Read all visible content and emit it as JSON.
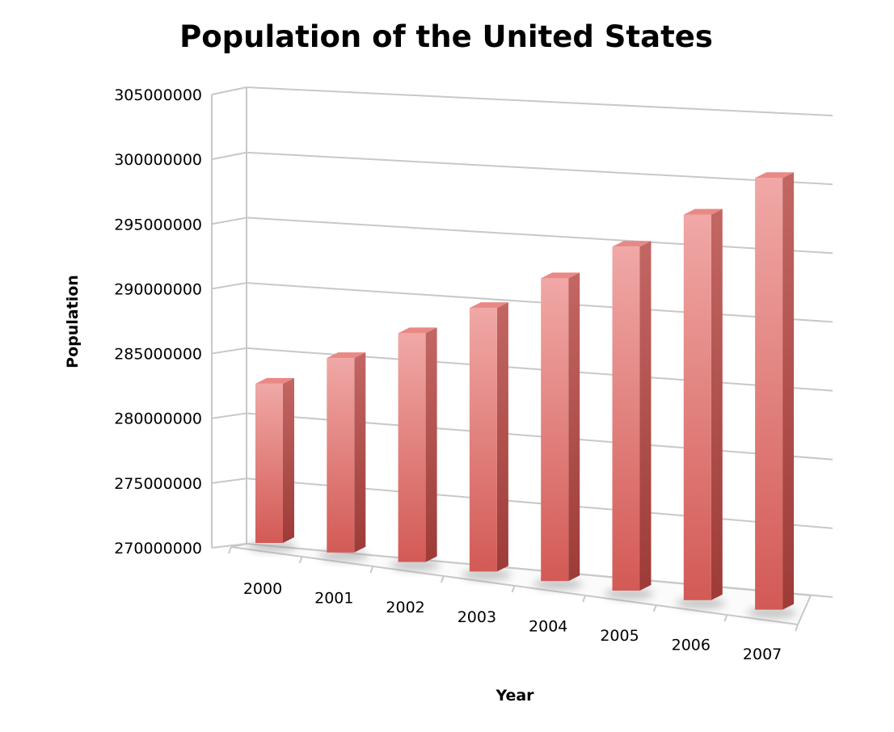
{
  "chart_data": {
    "type": "bar",
    "title": "Population of the United States",
    "xlabel": "Year",
    "ylabel": "Population",
    "categories": [
      "2000",
      "2001",
      "2002",
      "2003",
      "2004",
      "2005",
      "2006",
      "2007"
    ],
    "values": [
      282200000,
      284800000,
      287300000,
      289800000,
      292600000,
      295500000,
      298400000,
      301600000
    ],
    "ylim": [
      270000000,
      305000000
    ],
    "yticks": [
      "270000000",
      "275000000",
      "280000000",
      "285000000",
      "290000000",
      "295000000",
      "300000000",
      "305000000"
    ],
    "grid": true,
    "legend": "none",
    "style": "3d-column",
    "colors": {
      "bar": "#d9625e",
      "bar_light": "#f0a8a6",
      "bar_side": "#a84440",
      "bar_top": "#e98885",
      "grid": "#c8c8c8"
    }
  }
}
